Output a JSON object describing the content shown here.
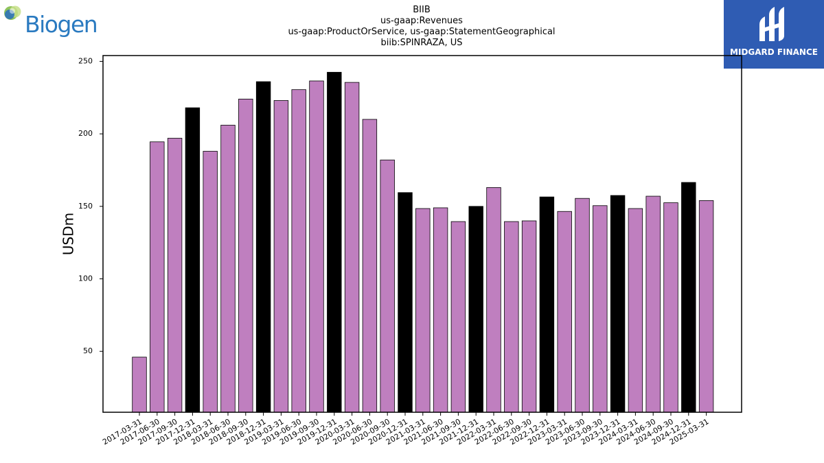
{
  "logos": {
    "left": {
      "text": "Biogen",
      "color": "#2a7ac0"
    },
    "right": {
      "text": "MIDGARD FINANCE",
      "background": "#2f5cb3"
    }
  },
  "chart_data": {
    "type": "bar",
    "title_lines": [
      "BIIB",
      "us-gaap:Revenues",
      "us-gaap:ProductOrService, us-gaap:StatementGeographical",
      "biib:SPINRAZA, US"
    ],
    "xlabel": "",
    "ylabel": "USDm",
    "ylim": [
      8,
      254
    ],
    "yticks": [
      50,
      100,
      150,
      200,
      250
    ],
    "grid": false,
    "colors": {
      "quarter": "#bf7fbf",
      "year_end": "#000000",
      "edge": "#000000"
    },
    "categories": [
      "2017-03-31",
      "2017-06-30",
      "2017-09-30",
      "2017-12-31",
      "2018-03-31",
      "2018-06-30",
      "2018-09-30",
      "2018-12-31",
      "2019-03-31",
      "2019-06-30",
      "2019-09-30",
      "2019-12-31",
      "2020-03-31",
      "2020-06-30",
      "2020-09-30",
      "2020-12-31",
      "2021-03-31",
      "2021-06-30",
      "2021-09-30",
      "2021-12-31",
      "2022-03-31",
      "2022-06-30",
      "2022-09-30",
      "2022-12-31",
      "2023-03-31",
      "2023-06-30",
      "2023-09-30",
      "2023-12-31",
      "2024-03-31",
      "2024-06-30",
      "2024-09-30",
      "2024-12-31",
      "2025-03-31"
    ],
    "values": [
      46,
      194.5,
      197,
      218,
      188,
      206,
      224,
      236,
      223,
      230.5,
      236.5,
      242.5,
      235.5,
      210,
      182,
      159.5,
      148.5,
      149,
      139.5,
      150,
      163,
      139.5,
      140,
      156.5,
      146.5,
      155.5,
      150.5,
      157.5,
      148.5,
      157,
      152.5,
      166.5,
      154
    ]
  }
}
